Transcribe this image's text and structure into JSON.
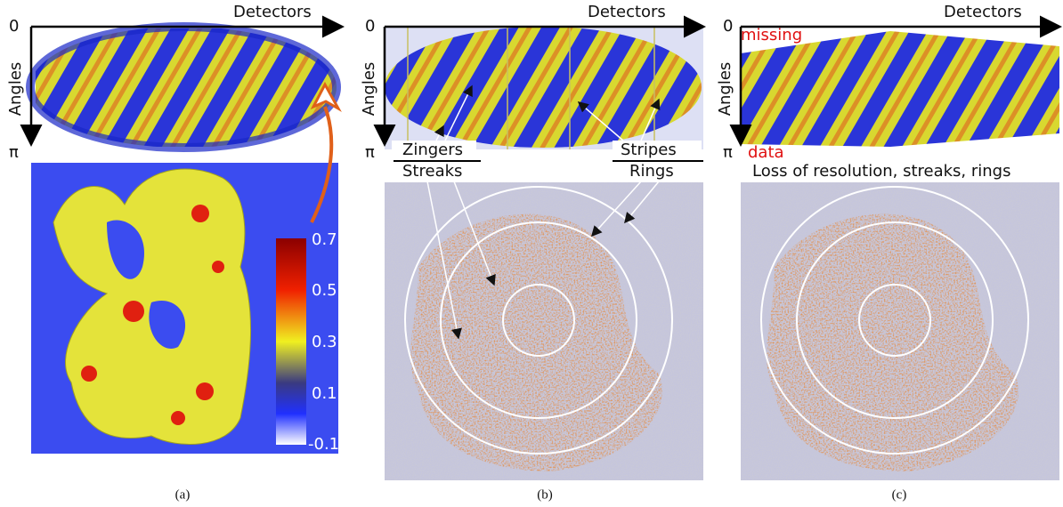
{
  "panels": [
    {
      "label": "(a)",
      "axes": {
        "x": "Detectors",
        "y": "Angles",
        "start": "0",
        "end": "π"
      },
      "colorbar": {
        "ticks": [
          0.7,
          0.5,
          0.3,
          0.1,
          -0.1
        ]
      }
    },
    {
      "label": "(b)",
      "axes": {
        "x": "Detectors",
        "y": "Angles",
        "start": "0",
        "end": "π"
      },
      "annotations": [
        "Zingers",
        "Streaks",
        "Stripes",
        "Rings"
      ]
    },
    {
      "label": "(c)",
      "axes": {
        "x": "Detectors",
        "y": "Angles",
        "start": "0",
        "end": "π"
      },
      "annotations": [
        "missing",
        "data"
      ],
      "caption": "Loss of resolution, streaks, rings"
    }
  ]
}
